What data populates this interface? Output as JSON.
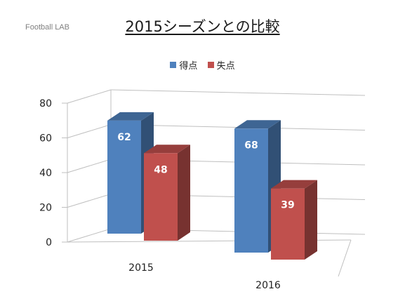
{
  "watermark": "Football LAB",
  "chart_data": {
    "type": "bar",
    "title": "2015シーズンとの比較",
    "categories": [
      "2015",
      "2016"
    ],
    "series": [
      {
        "name": "得点",
        "values": [
          62,
          68
        ],
        "color": "#4f81bd"
      },
      {
        "name": "失点",
        "values": [
          48,
          39
        ],
        "color": "#c0504d"
      }
    ],
    "ylim": [
      0,
      80
    ],
    "yticks": [
      0,
      20,
      40,
      60,
      80
    ],
    "grid": true,
    "legend": "top",
    "data_labels": true,
    "style": "3d-clustered-column"
  }
}
